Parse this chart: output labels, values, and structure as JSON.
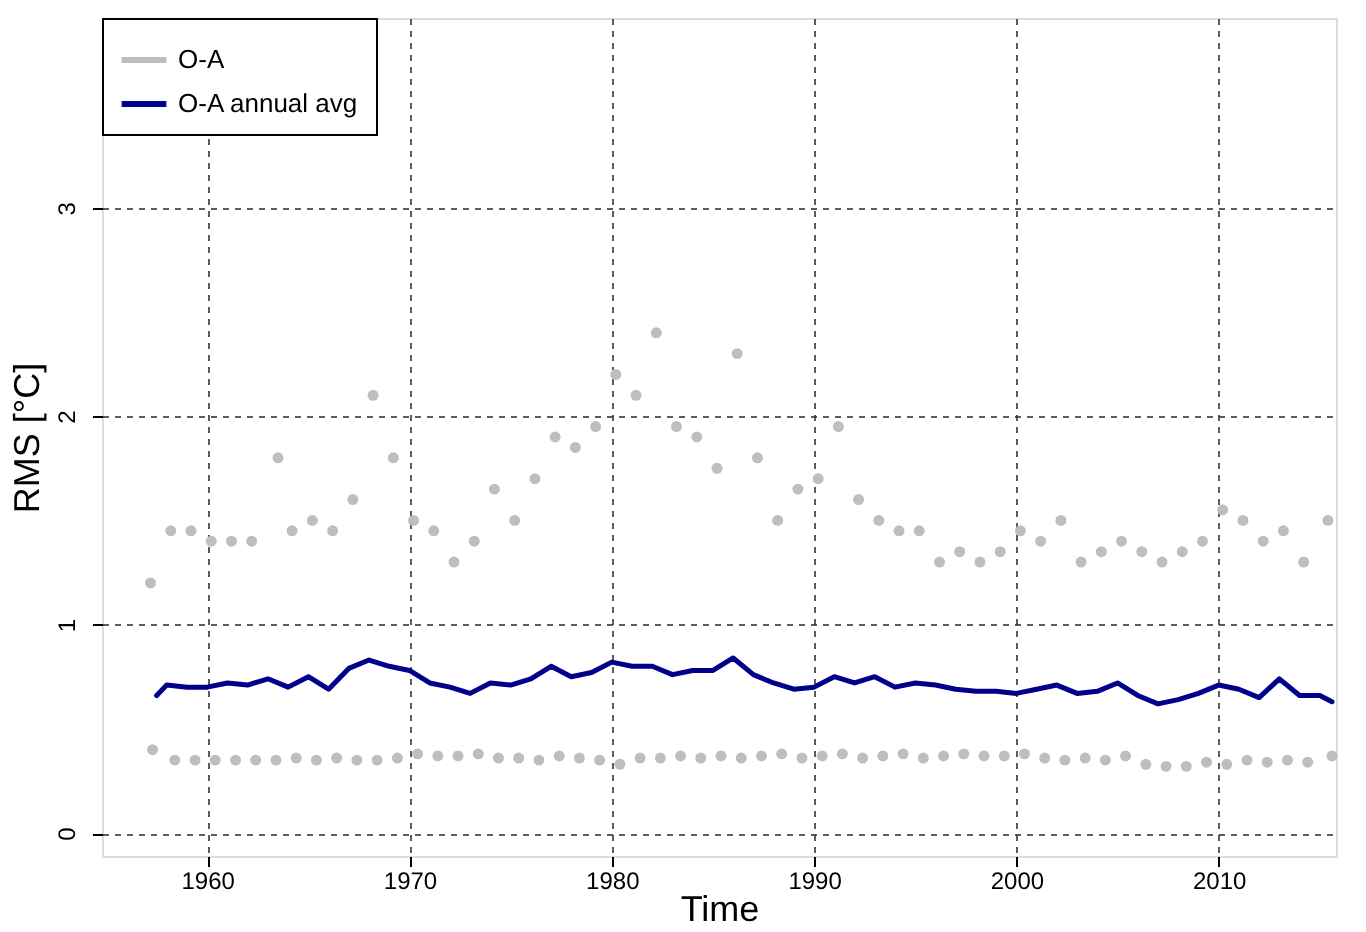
{
  "chart_data": {
    "type": "scatter",
    "xlabel": "Time",
    "ylabel": "RMS [°C]",
    "xlim": [
      1954.8,
      2015.8
    ],
    "ylim": [
      -0.11,
      3.91
    ],
    "xticks": [
      1960,
      1970,
      1980,
      1990,
      2000,
      2010
    ],
    "yticks": [
      0,
      1,
      2,
      3
    ],
    "grid": true,
    "legend": "top left",
    "series": [
      {
        "name": "O-A",
        "marker": "circle",
        "color": "#bebebe",
        "x": [
          1957.2,
          1957.3,
          1958.2,
          1958.4,
          1959.2,
          1959.4,
          1960.2,
          1960.4,
          1961.2,
          1961.4,
          1962.2,
          1962.4,
          1963.5,
          1963.4,
          1964.2,
          1964.4,
          1965.2,
          1965.4,
          1966.2,
          1966.4,
          1967.2,
          1967.4,
          1968.2,
          1968.4,
          1969.2,
          1969.4,
          1970.2,
          1970.4,
          1971.2,
          1971.4,
          1972.2,
          1972.4,
          1973.2,
          1973.4,
          1974.2,
          1974.4,
          1975.2,
          1975.4,
          1976.2,
          1976.4,
          1977.2,
          1977.4,
          1978.2,
          1978.4,
          1979.2,
          1979.4,
          1980.2,
          1980.4,
          1981.2,
          1981.4,
          1982.2,
          1982.4,
          1983.2,
          1983.4,
          1984.2,
          1984.4,
          1985.2,
          1985.4,
          1986.2,
          1986.4,
          1987.2,
          1987.4,
          1988.2,
          1988.4,
          1989.2,
          1989.4,
          1990.2,
          1990.4,
          1991.2,
          1991.4,
          1992.2,
          1992.4,
          1993.2,
          1993.4,
          1994.2,
          1994.4,
          1995.2,
          1995.4,
          1996.2,
          1996.4,
          1997.2,
          1997.4,
          1998.2,
          1998.4,
          1999.2,
          1999.4,
          2000.2,
          2000.4,
          2001.2,
          2001.4,
          2002.2,
          2002.4,
          2003.2,
          2003.4,
          2004.2,
          2004.4,
          2005.2,
          2005.4,
          2006.2,
          2006.4,
          2007.2,
          2007.4,
          2008.2,
          2008.4,
          2009.2,
          2009.4,
          2010.2,
          2010.4,
          2011.2,
          2011.4,
          2012.2,
          2012.4,
          2013.2,
          2013.4,
          2014.2,
          2014.4,
          2015.4,
          2015.6
        ],
        "values": [
          1.2,
          0.4,
          1.45,
          0.35,
          1.45,
          0.35,
          1.4,
          0.35,
          1.4,
          0.35,
          1.4,
          0.35,
          1.8,
          0.35,
          1.45,
          0.36,
          1.5,
          0.35,
          1.45,
          0.36,
          1.6,
          0.35,
          2.1,
          0.35,
          1.8,
          0.36,
          1.5,
          0.38,
          1.45,
          0.37,
          1.3,
          0.37,
          1.4,
          0.38,
          1.65,
          0.36,
          1.5,
          0.36,
          1.7,
          0.35,
          1.9,
          0.37,
          1.85,
          0.36,
          1.95,
          0.35,
          2.2,
          0.33,
          2.1,
          0.36,
          2.4,
          0.36,
          1.95,
          0.37,
          1.9,
          0.36,
          1.75,
          0.37,
          2.3,
          0.36,
          1.8,
          0.37,
          1.5,
          0.38,
          1.65,
          0.36,
          1.7,
          0.37,
          1.95,
          0.38,
          1.6,
          0.36,
          1.5,
          0.37,
          1.45,
          0.38,
          1.45,
          0.36,
          1.3,
          0.37,
          1.35,
          0.38,
          1.3,
          0.37,
          1.35,
          0.37,
          1.45,
          0.38,
          1.4,
          0.36,
          1.5,
          0.35,
          1.3,
          0.36,
          1.35,
          0.35,
          1.4,
          0.37,
          1.35,
          0.33,
          1.3,
          0.32,
          1.35,
          0.32,
          1.4,
          0.34,
          1.55,
          0.33,
          1.5,
          0.35,
          1.4,
          0.34,
          1.45,
          0.35,
          1.3,
          0.34,
          1.5,
          0.37
        ]
      },
      {
        "name": "O-A annual avg",
        "type": "line",
        "color": "#00008b",
        "x": [
          1957.5,
          1958,
          1959,
          1960,
          1961,
          1962,
          1963,
          1964,
          1965,
          1966,
          1967,
          1968,
          1969,
          1970,
          1971,
          1972,
          1973,
          1974,
          1975,
          1976,
          1977,
          1978,
          1979,
          1980,
          1981,
          1982,
          1983,
          1984,
          1985,
          1986,
          1987,
          1988,
          1989,
          1990,
          1991,
          1992,
          1993,
          1994,
          1995,
          1996,
          1997,
          1998,
          1999,
          2000,
          2001,
          2002,
          2003,
          2004,
          2005,
          2006,
          2007,
          2008,
          2009,
          2010,
          2011,
          2012,
          2013,
          2014,
          2015,
          2015.6
        ],
        "values": [
          0.66,
          0.71,
          0.7,
          0.7,
          0.72,
          0.71,
          0.74,
          0.7,
          0.75,
          0.69,
          0.79,
          0.83,
          0.8,
          0.78,
          0.72,
          0.7,
          0.67,
          0.72,
          0.71,
          0.74,
          0.8,
          0.75,
          0.77,
          0.82,
          0.8,
          0.8,
          0.76,
          0.78,
          0.78,
          0.84,
          0.76,
          0.72,
          0.69,
          0.7,
          0.75,
          0.72,
          0.75,
          0.7,
          0.72,
          0.71,
          0.69,
          0.68,
          0.68,
          0.67,
          0.69,
          0.71,
          0.67,
          0.68,
          0.72,
          0.66,
          0.62,
          0.64,
          0.67,
          0.71,
          0.69,
          0.65,
          0.74,
          0.66,
          0.66,
          0.63
        ]
      }
    ]
  }
}
